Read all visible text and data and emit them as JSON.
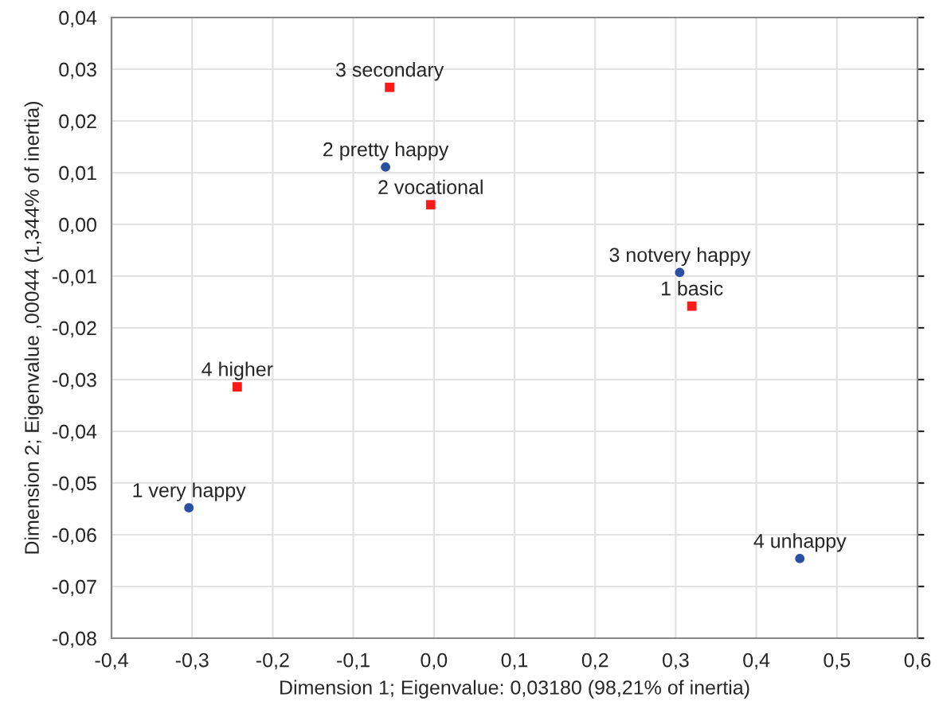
{
  "chart_data": {
    "type": "scatter",
    "xlabel": "Dimension 1; Eigenvalue: 0,03180 (98,21% of inertia)",
    "ylabel": "Dimension 2; Eigenvalue ,00044 (1,344% of inertia)",
    "series": [
      {
        "color": "#2a4fa3",
        "marker": "circle",
        "x": [
          -0.06,
          0.305,
          0.454,
          -0.304
        ],
        "values": [
          0.0111,
          -0.0093,
          -0.0646,
          -0.0548
        ]
      },
      {
        "color": "#ff1a1a",
        "marker": "square",
        "x": [
          -0.055,
          -0.004,
          0.32,
          -0.244
        ],
        "values": [
          0.0265,
          0.0038,
          -0.0158,
          -0.0314
        ]
      }
    ],
    "annotations": [
      {
        "text": "2 pretty happy",
        "x": -0.06,
        "y": 0.0111
      },
      {
        "text": "3 notvery happy",
        "x": 0.305,
        "y": -0.0093
      },
      {
        "text": "4 unhappy",
        "x": 0.454,
        "y": -0.0646
      },
      {
        "text": "1 very happy",
        "x": -0.304,
        "y": -0.0548
      },
      {
        "text": "3 secondary",
        "x": -0.055,
        "y": 0.0265
      },
      {
        "text": "2 vocational",
        "x": -0.004,
        "y": 0.0038
      },
      {
        "text": "1 basic",
        "x": 0.32,
        "y": -0.0158
      },
      {
        "text": "4 higher",
        "x": -0.244,
        "y": -0.0314
      }
    ],
    "xlim": [
      -0.4,
      0.6
    ],
    "xticks": [
      {
        "value": -0.4,
        "label": "-0,4"
      },
      {
        "value": -0.3,
        "label": "-0,3"
      },
      {
        "value": -0.2,
        "label": "-0,2"
      },
      {
        "value": -0.1,
        "label": "-0,1"
      },
      {
        "value": 0.0,
        "label": "0,0"
      },
      {
        "value": 0.1,
        "label": "0,1"
      },
      {
        "value": 0.2,
        "label": "0,2"
      },
      {
        "value": 0.3,
        "label": "0,3"
      },
      {
        "value": 0.4,
        "label": "0,4"
      },
      {
        "value": 0.5,
        "label": "0,5"
      },
      {
        "value": 0.6,
        "label": "0,6"
      }
    ],
    "ylim": [
      -0.08,
      0.04
    ],
    "yticks": [
      {
        "value": -0.08,
        "label": "-0,08"
      },
      {
        "value": -0.07,
        "label": "-0,07"
      },
      {
        "value": -0.06,
        "label": "-0,06"
      },
      {
        "value": -0.05,
        "label": "-0,05"
      },
      {
        "value": -0.04,
        "label": "-0,04"
      },
      {
        "value": -0.03,
        "label": "-0,03"
      },
      {
        "value": -0.02,
        "label": "-0,02"
      },
      {
        "value": -0.01,
        "label": "-0,01"
      },
      {
        "value": 0.0,
        "label": "0,00"
      },
      {
        "value": 0.01,
        "label": "0,01"
      },
      {
        "value": 0.02,
        "label": "0,02"
      },
      {
        "value": 0.03,
        "label": "0,03"
      },
      {
        "value": 0.04,
        "label": "0,04"
      }
    ],
    "grid": true
  }
}
